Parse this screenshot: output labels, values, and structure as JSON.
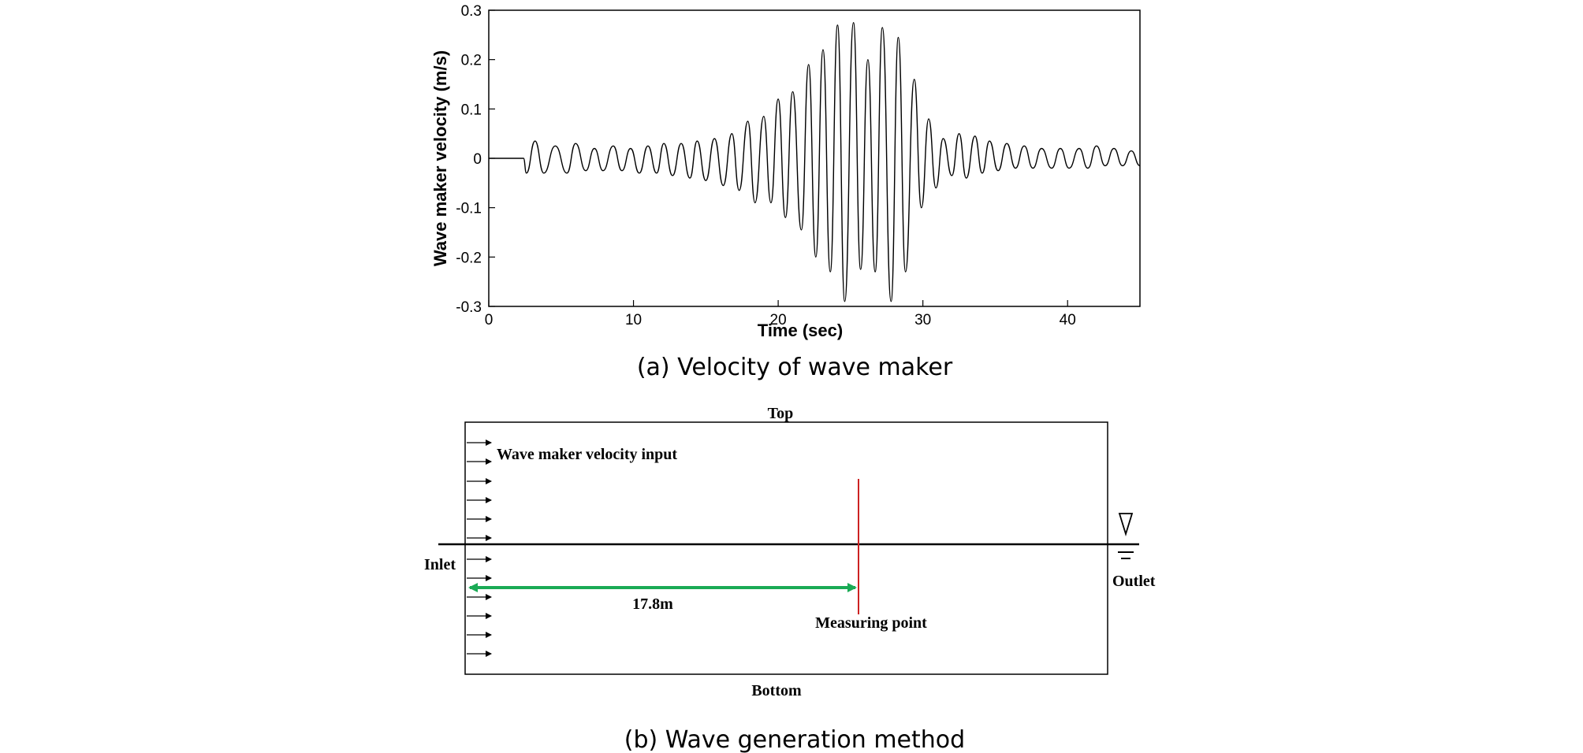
{
  "panel_a": {
    "caption": "(a) Velocity of wave maker",
    "chart_data": {
      "type": "line",
      "title": "",
      "xlabel": "Time (sec)",
      "ylabel": "Wave maker velocity (m/s)",
      "xlim": [
        0,
        45
      ],
      "ylim": [
        -0.3,
        0.3
      ],
      "xticks": [
        0,
        10,
        20,
        30,
        40
      ],
      "xtick_labels": [
        "0",
        "10",
        "20",
        "30",
        "40"
      ],
      "yticks": [
        -0.3,
        -0.2,
        -0.1,
        0,
        0.1,
        0.2,
        0.3
      ],
      "ytick_labels": [
        "-0.3",
        "-0.2",
        "-0.1",
        "0",
        "0.1",
        "0.2",
        "0.3"
      ],
      "grid": false,
      "legend": "none",
      "line_color": "#000000",
      "series": [
        {
          "x": [
            0,
            2.4,
            2.6,
            3.2,
            3.8,
            4.6,
            5.4,
            6.0,
            6.7,
            7.3,
            7.9,
            8.6,
            9.2,
            9.8,
            10.4,
            11.0,
            11.6,
            12.1,
            12.7,
            13.3,
            13.9,
            14.4,
            15.0,
            15.6,
            16.2,
            16.8,
            17.3,
            17.9,
            18.4,
            19.0,
            19.5,
            20.0,
            20.5,
            21.0,
            21.6,
            22.1,
            22.6,
            23.1,
            23.6,
            24.1,
            24.6,
            25.2,
            25.7,
            26.2,
            26.7,
            27.2,
            27.8,
            28.3,
            28.8,
            29.4,
            29.9,
            30.4,
            30.9,
            31.4,
            32.0,
            32.5,
            33.0,
            33.6,
            34.1,
            34.6,
            35.2,
            35.8,
            36.4,
            37.0,
            37.6,
            38.2,
            38.9,
            39.5,
            40.1,
            40.8,
            41.4,
            42.0,
            42.6,
            43.2,
            43.8,
            44.4,
            45.0
          ],
          "y": [
            0,
            0,
            -0.03,
            0.035,
            -0.03,
            0.025,
            -0.03,
            0.03,
            -0.025,
            0.02,
            -0.025,
            0.025,
            -0.025,
            0.02,
            -0.03,
            0.025,
            -0.03,
            0.03,
            -0.035,
            0.03,
            -0.04,
            0.035,
            -0.045,
            0.04,
            -0.055,
            0.05,
            -0.065,
            0.075,
            -0.09,
            0.085,
            -0.09,
            0.12,
            -0.12,
            0.135,
            -0.145,
            0.19,
            -0.2,
            0.22,
            -0.23,
            0.27,
            -0.29,
            0.275,
            -0.225,
            0.2,
            -0.23,
            0.265,
            -0.29,
            0.245,
            -0.23,
            0.16,
            -0.1,
            0.08,
            -0.06,
            0.04,
            -0.035,
            0.05,
            -0.04,
            0.045,
            -0.03,
            0.035,
            -0.025,
            0.03,
            -0.02,
            0.025,
            -0.02,
            0.02,
            -0.02,
            0.02,
            -0.02,
            0.02,
            -0.02,
            0.025,
            -0.015,
            0.02,
            -0.015,
            0.015,
            -0.015
          ]
        }
      ]
    }
  },
  "panel_b": {
    "caption": "(b) Wave generation method",
    "labels": {
      "top": "Top",
      "bottom": "Bottom",
      "inlet": "Inlet",
      "outlet": "Outlet",
      "wave_input": "Wave maker velocity input",
      "distance": "17.8m",
      "measuring_point": "Measuring point"
    },
    "colors": {
      "measure_line": "#cc2222",
      "distance_arrow": "#1aaa55",
      "outline": "#000000"
    },
    "icons": {
      "free_surface_symbol": "water-level-triangle-icon"
    }
  }
}
